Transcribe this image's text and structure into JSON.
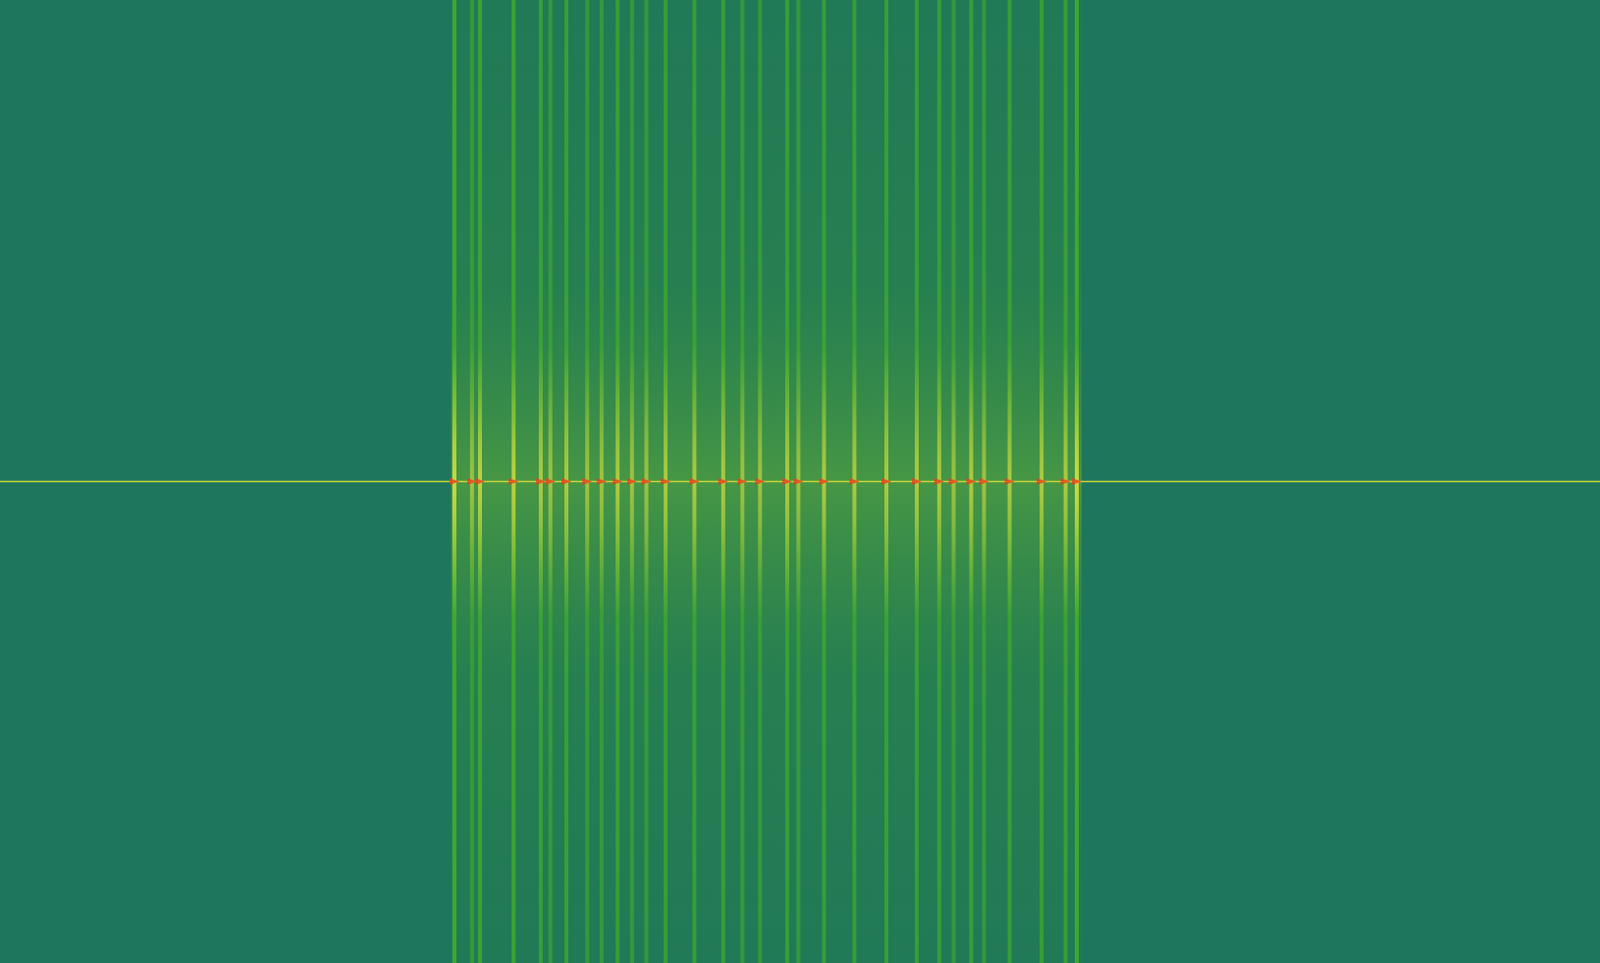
{
  "chart_data": {
    "type": "spectrogram",
    "xlim": [
      0,
      100
    ],
    "ylim": [
      0,
      100
    ],
    "tick_labels": false,
    "grid": false,
    "color": "#3fae2a",
    "burst": [
      28.2,
      67.6
    ],
    "carrier": 50,
    "bands": [
      28.4,
      29.5,
      30.0,
      32.1,
      33.8,
      34.4,
      35.4,
      36.7,
      37.6,
      38.6,
      39.5,
      40.4,
      41.6,
      43.4,
      45.2,
      46.4,
      47.5,
      49.2,
      49.9,
      51.5,
      53.4,
      55.4,
      57.3,
      58.7,
      59.6,
      60.7,
      61.5,
      63.1,
      65.1,
      66.6,
      67.3
    ],
    "levels": [
      0.9,
      0.6,
      0.8,
      0.8,
      0.7,
      0.6,
      0.7,
      0.6,
      0.6,
      0.7,
      0.6,
      0.6,
      0.7,
      0.7,
      0.7,
      0.6,
      0.6,
      0.7,
      0.6,
      0.7,
      0.7,
      0.7,
      0.7,
      0.7,
      0.6,
      0.7,
      0.6,
      0.7,
      0.7,
      0.7,
      0.9
    ]
  }
}
